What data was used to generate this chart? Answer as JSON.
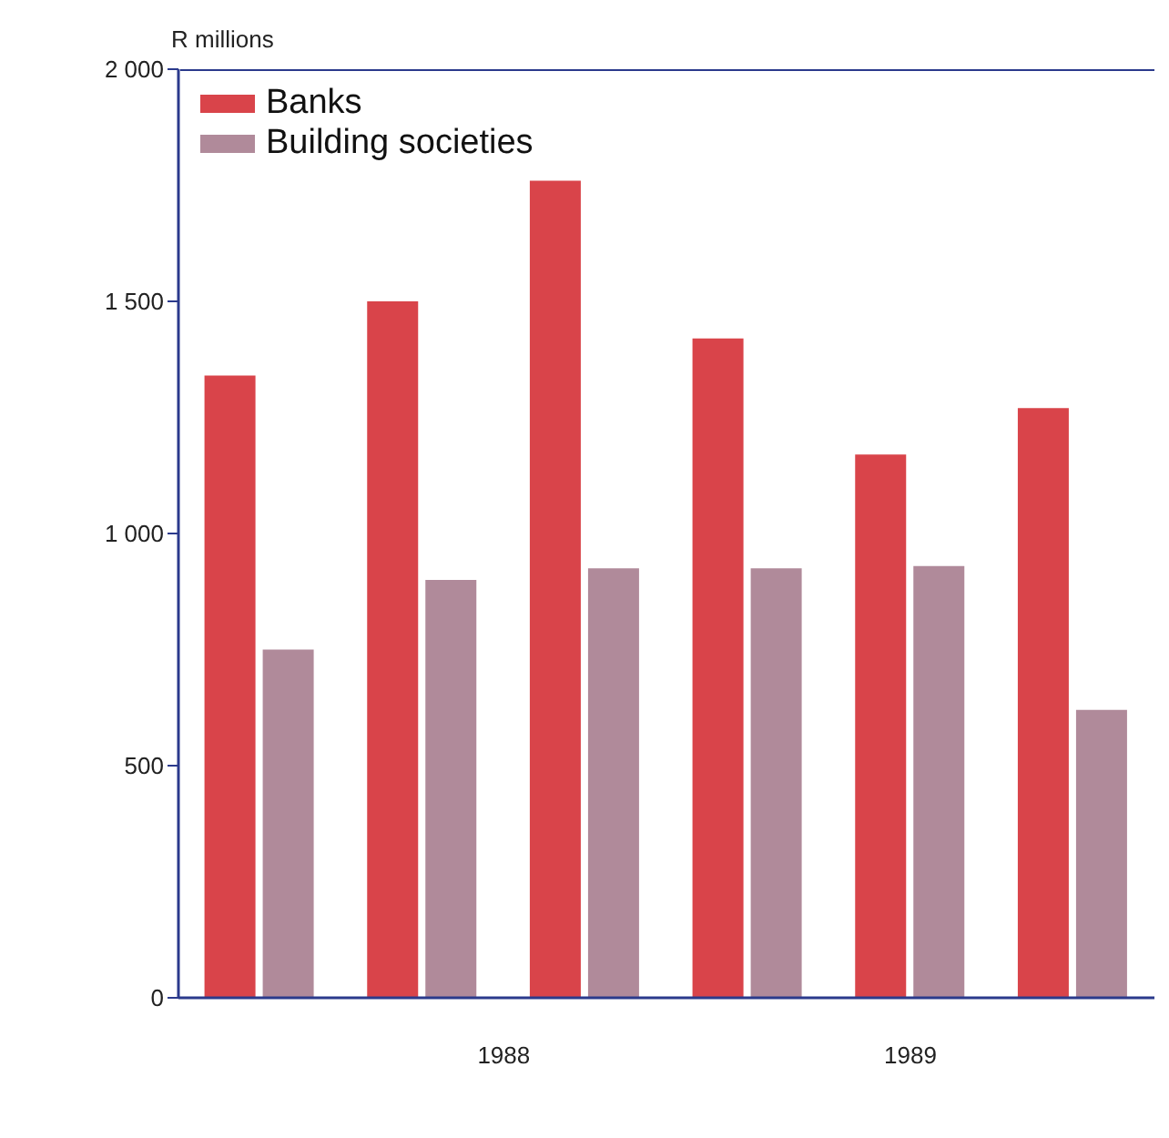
{
  "chart_data": {
    "type": "bar",
    "ylabel": "R millions",
    "categories": [
      null,
      null,
      null,
      null,
      null,
      null
    ],
    "series": [
      {
        "name": "Banks",
        "color": "#d9444a",
        "values": [
          1340,
          1500,
          1760,
          1420,
          1170,
          1270
        ]
      },
      {
        "name": "Building societies",
        "color": "#b08a9a",
        "values": [
          750,
          900,
          925,
          925,
          930,
          620
        ]
      }
    ],
    "ylim": [
      0,
      2000
    ],
    "yticks": [
      0,
      500,
      {
        "value": 1000,
        "label": "1 000"
      },
      {
        "value": 1500,
        "label": "1 500"
      },
      {
        "value": 2000,
        "label": "2 000"
      }
    ],
    "legend": "top left",
    "annotations": [
      "1988",
      "1989"
    ]
  }
}
